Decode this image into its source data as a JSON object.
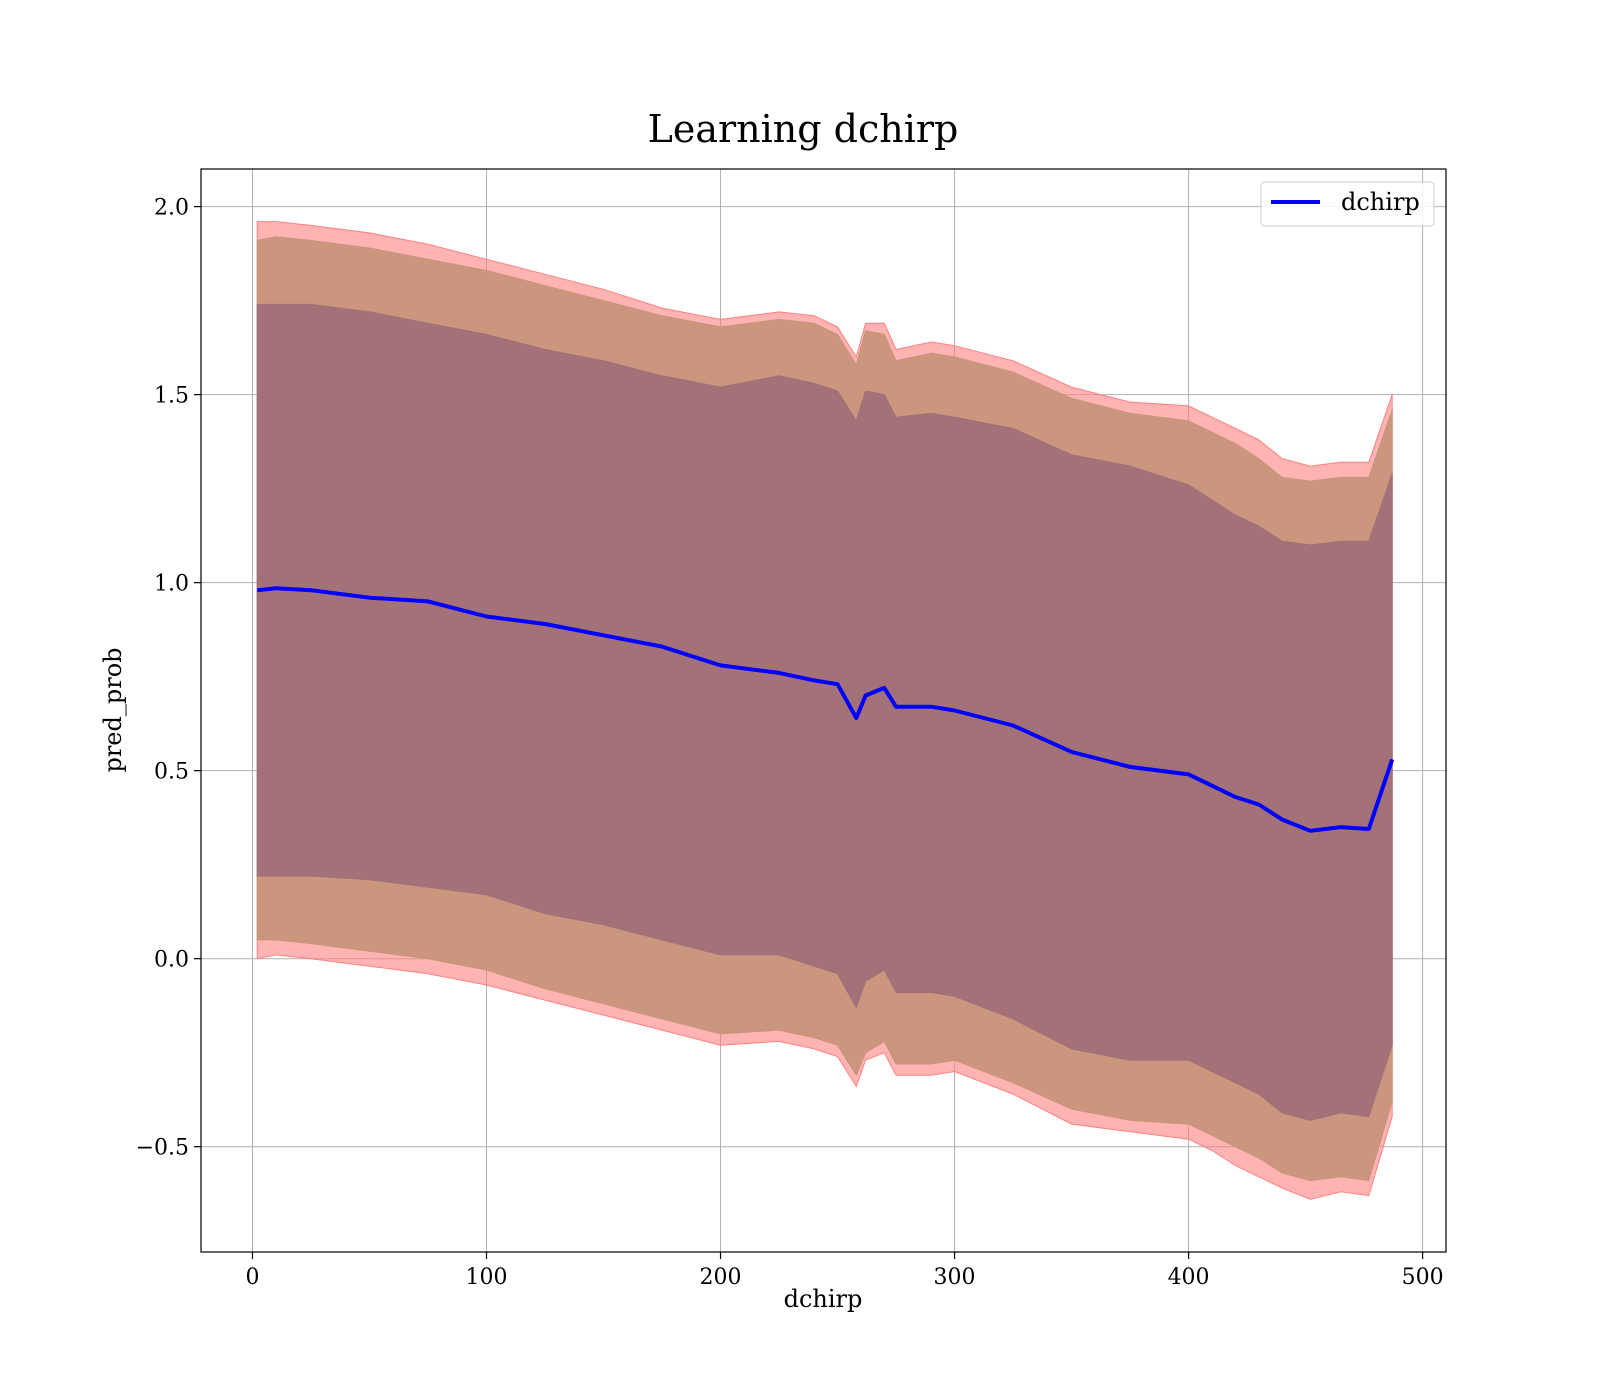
{
  "chart_data": {
    "type": "line",
    "title": "Learning dchirp",
    "xlabel": "dchirp",
    "ylabel": "pred_prob",
    "xlim": [
      -22,
      510
    ],
    "ylim": [
      -0.78,
      2.1
    ],
    "xticks": [
      0,
      100,
      200,
      300,
      400,
      500
    ],
    "yticks": [
      -0.5,
      0.0,
      0.5,
      1.0,
      1.5,
      2.0
    ],
    "xtick_labels": [
      "0",
      "100",
      "200",
      "300",
      "400",
      "500"
    ],
    "ytick_labels": [
      "−0.5",
      "0.0",
      "0.5",
      "1.0",
      "1.5",
      "2.0"
    ],
    "grid": true,
    "legend": {
      "position": "top-right",
      "entries": [
        "dchirp"
      ]
    },
    "colors": {
      "line": "#0000ff",
      "band_outer": "#ff8080",
      "band_middle": "#c8957a",
      "band_inner": "#a07078"
    },
    "x": [
      2,
      10,
      25,
      50,
      75,
      100,
      125,
      150,
      175,
      200,
      225,
      240,
      250,
      258,
      262,
      270,
      275,
      290,
      300,
      325,
      350,
      375,
      400,
      410,
      420,
      430,
      440,
      452,
      465,
      477,
      487
    ],
    "series": [
      {
        "name": "dchirp",
        "values": [
          0.98,
          0.985,
          0.98,
          0.96,
          0.95,
          0.91,
          0.89,
          0.86,
          0.83,
          0.78,
          0.76,
          0.74,
          0.73,
          0.64,
          0.7,
          0.72,
          0.67,
          0.67,
          0.66,
          0.62,
          0.55,
          0.51,
          0.49,
          0.46,
          0.43,
          0.41,
          0.37,
          0.34,
          0.35,
          0.345,
          0.53
        ]
      }
    ],
    "bands": [
      {
        "upper": [
          1.96,
          1.96,
          1.95,
          1.93,
          1.9,
          1.86,
          1.82,
          1.78,
          1.73,
          1.7,
          1.72,
          1.71,
          1.68,
          1.6,
          1.69,
          1.69,
          1.62,
          1.64,
          1.63,
          1.59,
          1.52,
          1.48,
          1.47,
          1.44,
          1.41,
          1.38,
          1.33,
          1.31,
          1.32,
          1.32,
          1.5
        ],
        "lower": [
          0.0,
          0.01,
          0.0,
          -0.02,
          -0.04,
          -0.07,
          -0.11,
          -0.15,
          -0.19,
          -0.23,
          -0.22,
          -0.24,
          -0.26,
          -0.34,
          -0.27,
          -0.25,
          -0.31,
          -0.31,
          -0.3,
          -0.36,
          -0.44,
          -0.46,
          -0.48,
          -0.51,
          -0.55,
          -0.58,
          -0.61,
          -0.64,
          -0.62,
          -0.63,
          -0.42
        ]
      },
      {
        "upper": [
          1.91,
          1.92,
          1.91,
          1.89,
          1.86,
          1.83,
          1.79,
          1.75,
          1.71,
          1.68,
          1.7,
          1.69,
          1.66,
          1.58,
          1.67,
          1.66,
          1.59,
          1.61,
          1.6,
          1.56,
          1.49,
          1.45,
          1.43,
          1.4,
          1.37,
          1.33,
          1.28,
          1.27,
          1.28,
          1.28,
          1.46
        ],
        "lower": [
          0.05,
          0.05,
          0.04,
          0.02,
          0.0,
          -0.03,
          -0.08,
          -0.12,
          -0.16,
          -0.2,
          -0.19,
          -0.21,
          -0.23,
          -0.31,
          -0.25,
          -0.22,
          -0.28,
          -0.28,
          -0.27,
          -0.33,
          -0.4,
          -0.43,
          -0.44,
          -0.47,
          -0.5,
          -0.53,
          -0.57,
          -0.59,
          -0.58,
          -0.59,
          -0.38
        ]
      },
      {
        "upper": [
          1.74,
          1.74,
          1.74,
          1.72,
          1.69,
          1.66,
          1.62,
          1.59,
          1.55,
          1.52,
          1.55,
          1.53,
          1.51,
          1.43,
          1.51,
          1.5,
          1.44,
          1.45,
          1.44,
          1.41,
          1.34,
          1.31,
          1.26,
          1.22,
          1.18,
          1.15,
          1.11,
          1.1,
          1.11,
          1.11,
          1.29
        ],
        "lower": [
          0.22,
          0.22,
          0.22,
          0.21,
          0.19,
          0.17,
          0.12,
          0.09,
          0.05,
          0.01,
          0.01,
          -0.02,
          -0.04,
          -0.13,
          -0.06,
          -0.03,
          -0.09,
          -0.09,
          -0.1,
          -0.16,
          -0.24,
          -0.27,
          -0.27,
          -0.3,
          -0.33,
          -0.36,
          -0.41,
          -0.43,
          -0.41,
          -0.42,
          -0.23
        ]
      }
    ]
  }
}
